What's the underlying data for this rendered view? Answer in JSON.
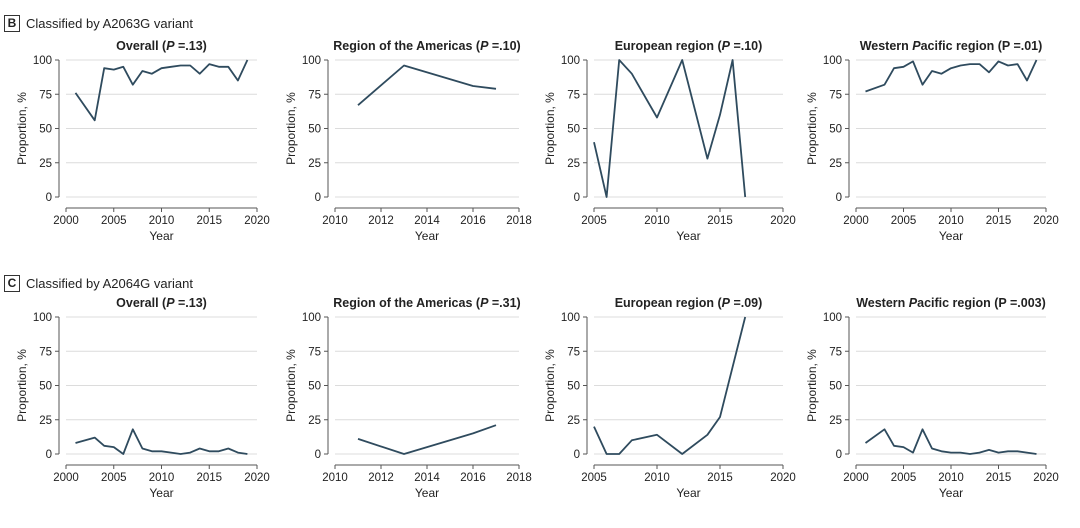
{
  "panels": [
    {
      "letter": "B",
      "text": "Classified by A2063G variant"
    },
    {
      "letter": "C",
      "text": "Classified by A2064G variant"
    }
  ],
  "chart_data": [
    {
      "type": "line",
      "title": "Overall (P =.13)",
      "xlabel": "Year",
      "ylabel": "Proportion, %",
      "xlim": [
        2000,
        2020
      ],
      "ylim": [
        0,
        100
      ],
      "xticks": [
        2000,
        2005,
        2010,
        2015,
        2020
      ],
      "yticks": [
        0,
        25,
        50,
        75,
        100
      ],
      "series": [
        {
          "x": [
            2001,
            2003,
            2004,
            2005,
            2006,
            2007,
            2008,
            2009,
            2010,
            2011,
            2012,
            2013,
            2014,
            2015,
            2016,
            2017,
            2018,
            2019
          ],
          "y": [
            76,
            56,
            94,
            93,
            95,
            82,
            92,
            90,
            94,
            95,
            96,
            96,
            90,
            97,
            95,
            95,
            85,
            100
          ]
        }
      ]
    },
    {
      "type": "line",
      "title": "Region of the Americas (P =.10)",
      "xlabel": "Year",
      "ylabel": "Proportion, %",
      "xlim": [
        2010,
        2018
      ],
      "ylim": [
        0,
        100
      ],
      "xticks": [
        2010,
        2012,
        2014,
        2016,
        2018
      ],
      "yticks": [
        0,
        25,
        50,
        75,
        100
      ],
      "series": [
        {
          "x": [
            2011,
            2013,
            2016,
            2017
          ],
          "y": [
            67,
            96,
            81,
            79
          ]
        }
      ]
    },
    {
      "type": "line",
      "title": "European region (P =.10)",
      "xlabel": "Year",
      "ylabel": "Proportion, %",
      "xlim": [
        2005,
        2020
      ],
      "ylim": [
        0,
        100
      ],
      "xticks": [
        2005,
        2010,
        2015,
        2020
      ],
      "yticks": [
        0,
        25,
        50,
        75,
        100
      ],
      "series": [
        {
          "x": [
            2005,
            2006,
            2007,
            2008,
            2010,
            2012,
            2014,
            2015,
            2016,
            2017
          ],
          "y": [
            40,
            0,
            100,
            90,
            58,
            100,
            28,
            60,
            100,
            0
          ]
        }
      ]
    },
    {
      "type": "line",
      "title": "Western Pacific region (P =.01)",
      "xlabel": "Year",
      "ylabel": "Proportion, %",
      "xlim": [
        2000,
        2020
      ],
      "ylim": [
        0,
        100
      ],
      "xticks": [
        2000,
        2005,
        2010,
        2015,
        2020
      ],
      "yticks": [
        0,
        25,
        50,
        75,
        100
      ],
      "series": [
        {
          "x": [
            2001,
            2003,
            2004,
            2005,
            2006,
            2007,
            2008,
            2009,
            2010,
            2011,
            2012,
            2013,
            2014,
            2015,
            2016,
            2017,
            2018,
            2019
          ],
          "y": [
            77,
            82,
            94,
            95,
            99,
            82,
            92,
            90,
            94,
            96,
            97,
            97,
            91,
            99,
            96,
            97,
            85,
            100
          ]
        }
      ]
    },
    {
      "type": "line",
      "title": "Overall (P =.13)",
      "xlabel": "Year",
      "ylabel": "Proportion, %",
      "xlim": [
        2000,
        2020
      ],
      "ylim": [
        0,
        100
      ],
      "xticks": [
        2000,
        2005,
        2010,
        2015,
        2020
      ],
      "yticks": [
        0,
        25,
        50,
        75,
        100
      ],
      "series": [
        {
          "x": [
            2001,
            2003,
            2004,
            2005,
            2006,
            2007,
            2008,
            2009,
            2010,
            2011,
            2012,
            2013,
            2014,
            2015,
            2016,
            2017,
            2018,
            2019
          ],
          "y": [
            8,
            12,
            6,
            5,
            0,
            18,
            4,
            2,
            2,
            1,
            0,
            1,
            4,
            2,
            2,
            4,
            1,
            0
          ]
        }
      ]
    },
    {
      "type": "line",
      "title": "Region of the Americas (P =.31)",
      "xlabel": "Year",
      "ylabel": "Proportion, %",
      "xlim": [
        2010,
        2018
      ],
      "ylim": [
        0,
        100
      ],
      "xticks": [
        2010,
        2012,
        2014,
        2016,
        2018
      ],
      "yticks": [
        0,
        25,
        50,
        75,
        100
      ],
      "series": [
        {
          "x": [
            2011,
            2013,
            2016,
            2017
          ],
          "y": [
            11,
            0,
            15,
            21
          ]
        }
      ]
    },
    {
      "type": "line",
      "title": "European region (P =.09)",
      "xlabel": "Year",
      "ylabel": "Proportion, %",
      "xlim": [
        2005,
        2020
      ],
      "ylim": [
        0,
        100
      ],
      "xticks": [
        2005,
        2010,
        2015,
        2020
      ],
      "yticks": [
        0,
        25,
        50,
        75,
        100
      ],
      "series": [
        {
          "x": [
            2005,
            2006,
            2007,
            2008,
            2010,
            2012,
            2014,
            2015,
            2017
          ],
          "y": [
            20,
            0,
            0,
            10,
            14,
            0,
            14,
            27,
            100
          ]
        }
      ]
    },
    {
      "type": "line",
      "title": "Western Pacific region (P =.003)",
      "xlabel": "Year",
      "ylabel": "Proportion, %",
      "xlim": [
        2000,
        2020
      ],
      "ylim": [
        0,
        100
      ],
      "xticks": [
        2000,
        2005,
        2010,
        2015,
        2020
      ],
      "yticks": [
        0,
        25,
        50,
        75,
        100
      ],
      "series": [
        {
          "x": [
            2001,
            2003,
            2004,
            2005,
            2006,
            2007,
            2008,
            2009,
            2010,
            2011,
            2012,
            2013,
            2014,
            2015,
            2016,
            2017,
            2018,
            2019
          ],
          "y": [
            8,
            18,
            6,
            5,
            1,
            18,
            4,
            2,
            1,
            1,
            0,
            1,
            3,
            1,
            2,
            2,
            1,
            0
          ]
        }
      ]
    }
  ]
}
